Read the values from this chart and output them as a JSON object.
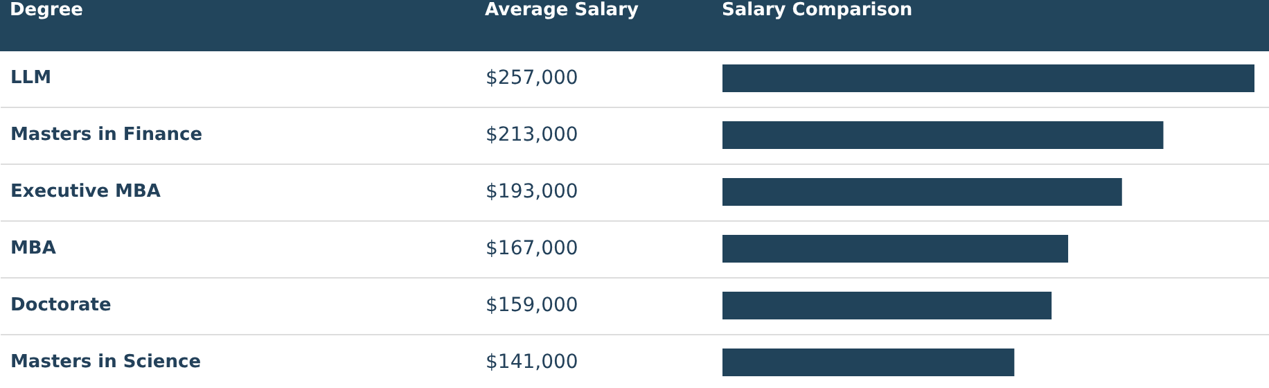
{
  "chart_data": {
    "type": "bar",
    "orientation": "horizontal",
    "ylabel": "Degree",
    "xlabel": "Salary Comparison",
    "annotations": [
      "Average Salary"
    ],
    "categories": [
      "LLM",
      "Masters in Finance",
      "Executive MBA",
      "MBA",
      "Doctorate",
      "Masters in Science"
    ],
    "values": [
      257000,
      213000,
      193000,
      167000,
      159000,
      141000
    ],
    "value_labels": [
      "$257,000",
      "$213,000",
      "$193,000",
      "$167,000",
      "$159,000",
      "$141,000"
    ],
    "color": "#21435a"
  }
}
